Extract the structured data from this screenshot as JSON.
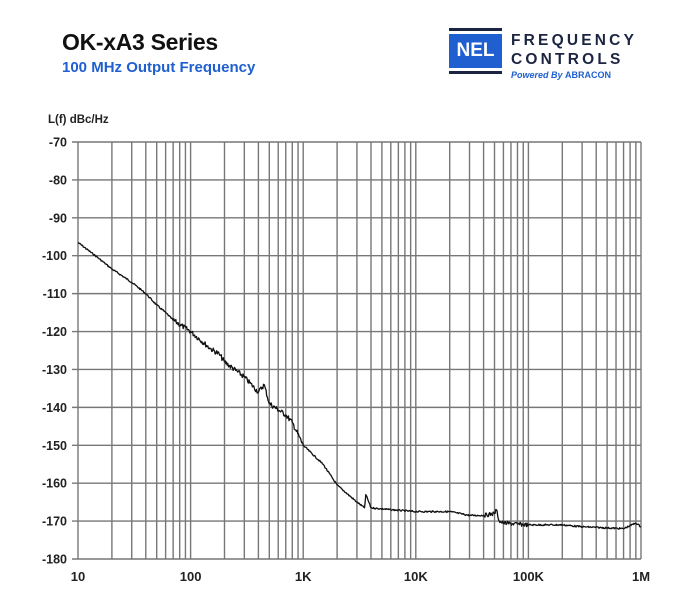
{
  "header": {
    "title": "OK-xA3 Series",
    "subtitle": "100 MHz Output Frequency"
  },
  "logo": {
    "mark": "NEL",
    "line1": "FREQUENCY",
    "line2": "CONTROLS",
    "powered_prefix": "Powered By",
    "powered_brand": "ABRACON",
    "colors": {
      "blue": "#1f5fcf",
      "navy": "#1b2440"
    }
  },
  "chart_data": {
    "type": "line",
    "title": "",
    "ylabel": "L(f) dBc/Hz",
    "xlabel": "",
    "x_scale": "log",
    "xlim": [
      10,
      1000000
    ],
    "ylim": [
      -180,
      -70
    ],
    "grid": true,
    "x_tick_values": [
      10,
      100,
      1000,
      10000,
      100000,
      1000000
    ],
    "x_tick_labels": [
      "10",
      "100",
      "1K",
      "10K",
      "100K",
      "1M"
    ],
    "y_ticks": [
      -70,
      -80,
      -90,
      -100,
      -110,
      -120,
      -130,
      -140,
      -150,
      -160,
      -170,
      -180
    ],
    "series": [
      {
        "color": "#111111",
        "x": [
          10,
          15,
          20,
          30,
          40,
          50,
          60,
          70,
          100,
          150,
          180,
          200,
          300,
          400,
          450,
          500,
          700,
          800,
          1000,
          1500,
          2000,
          3000,
          3500,
          3600,
          4000,
          6000,
          10000,
          15000,
          20000,
          30000,
          40000,
          50000,
          52000,
          55000,
          60000,
          80000,
          100000,
          150000,
          200000,
          300000,
          500000,
          700000,
          900000,
          1000000
        ],
        "y": [
          -96.5,
          -100.5,
          -103.5,
          -107,
          -110,
          -113,
          -115,
          -117,
          -120,
          -124.5,
          -126,
          -128,
          -132,
          -136,
          -134,
          -139,
          -142,
          -144,
          -150,
          -155,
          -160.5,
          -165,
          -166.5,
          -163,
          -166.5,
          -167,
          -167.5,
          -167.5,
          -167.5,
          -168.5,
          -168.5,
          -168,
          -167,
          -170,
          -170.5,
          -170.8,
          -171,
          -171,
          -171,
          -171.5,
          -171.8,
          -172,
          -170.5,
          -171.5
        ]
      }
    ]
  }
}
